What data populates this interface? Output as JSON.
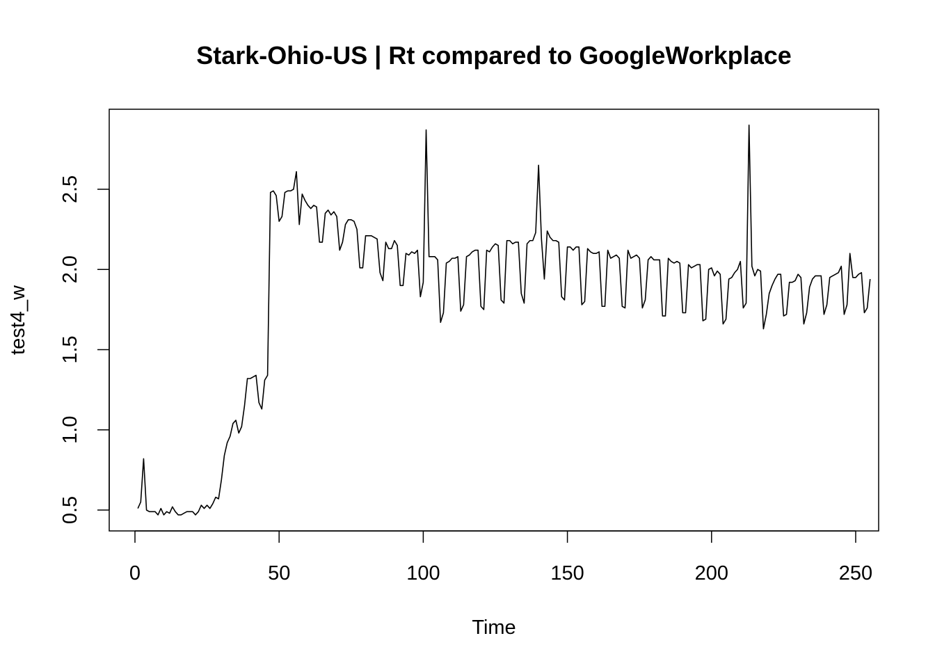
{
  "chart_data": {
    "type": "line",
    "title": "Stark-Ohio-US | Rt compared to GoogleWorkplace",
    "xlabel": "Time",
    "ylabel": "test4_w",
    "xlim": [
      1,
      248
    ],
    "ylim": [
      0.46,
      2.89
    ],
    "x_ticks": [
      0,
      50,
      100,
      150,
      200,
      250
    ],
    "y_ticks": [
      0.5,
      1.0,
      1.5,
      2.0,
      2.5
    ],
    "x_tick_labels": [
      "0",
      "50",
      "100",
      "150",
      "200",
      "250"
    ],
    "y_tick_labels": [
      "0.5",
      "1.0",
      "1.5",
      "2.0",
      "2.5"
    ],
    "grid": false,
    "legend": "none",
    "line_color": "#000000",
    "x_start": 1,
    "series": [
      {
        "values": [
          0.51,
          0.55,
          0.82,
          0.5,
          0.49,
          0.49,
          0.49,
          0.47,
          0.51,
          0.47,
          0.49,
          0.48,
          0.52,
          0.49,
          0.47,
          0.47,
          0.48,
          0.49,
          0.49,
          0.49,
          0.47,
          0.49,
          0.53,
          0.51,
          0.53,
          0.51,
          0.54,
          0.58,
          0.57,
          0.69,
          0.84,
          0.92,
          0.96,
          1.04,
          1.06,
          0.98,
          1.02,
          1.15,
          1.32,
          1.32,
          1.33,
          1.34,
          1.17,
          1.13,
          1.31,
          1.34,
          2.48,
          2.49,
          2.46,
          2.3,
          2.33,
          2.48,
          2.49,
          2.49,
          2.5,
          2.61,
          2.28,
          2.47,
          2.43,
          2.4,
          2.38,
          2.4,
          2.39,
          2.17,
          2.17,
          2.35,
          2.37,
          2.34,
          2.36,
          2.33,
          2.12,
          2.17,
          2.28,
          2.31,
          2.31,
          2.3,
          2.25,
          2.01,
          2.01,
          2.21,
          2.21,
          2.21,
          2.2,
          2.19,
          1.98,
          1.93,
          2.17,
          2.13,
          2.13,
          2.18,
          2.15,
          1.9,
          1.9,
          2.1,
          2.09,
          2.11,
          2.1,
          2.12,
          1.83,
          1.92,
          2.87,
          2.08,
          2.08,
          2.08,
          2.06,
          1.67,
          1.73,
          2.04,
          2.05,
          2.07,
          2.07,
          2.08,
          1.74,
          1.78,
          2.08,
          2.09,
          2.11,
          2.12,
          2.12,
          1.77,
          1.75,
          2.12,
          2.11,
          2.14,
          2.16,
          2.15,
          1.81,
          1.79,
          2.18,
          2.18,
          2.16,
          2.17,
          2.17,
          1.85,
          1.79,
          2.16,
          2.18,
          2.18,
          2.23,
          2.65,
          2.19,
          1.94,
          2.24,
          2.2,
          2.18,
          2.18,
          2.17,
          1.83,
          1.81,
          2.14,
          2.14,
          2.12,
          2.14,
          2.14,
          1.78,
          1.8,
          2.13,
          2.11,
          2.1,
          2.1,
          2.11,
          1.77,
          1.77,
          2.12,
          2.07,
          2.08,
          2.09,
          2.07,
          1.77,
          1.76,
          2.12,
          2.07,
          2.08,
          2.09,
          2.07,
          1.76,
          1.81,
          2.06,
          2.08,
          2.06,
          2.06,
          2.06,
          1.71,
          1.71,
          2.07,
          2.05,
          2.04,
          2.05,
          2.04,
          1.73,
          1.73,
          2.03,
          2.01,
          2.02,
          2.03,
          2.03,
          1.68,
          1.69,
          2.0,
          2.01,
          1.96,
          1.99,
          1.97,
          1.66,
          1.69,
          1.94,
          1.95,
          1.98,
          2.0,
          2.05,
          1.76,
          1.79,
          2.9,
          2.02,
          1.96,
          2.0,
          1.99,
          1.63,
          1.72,
          1.85,
          1.9,
          1.94,
          1.97,
          1.97,
          1.71,
          1.72,
          1.92,
          1.92,
          1.93,
          1.97,
          1.95,
          1.66,
          1.73,
          1.89,
          1.94,
          1.96,
          1.96,
          1.96,
          1.72,
          1.78,
          1.95,
          1.96,
          1.97,
          1.98,
          2.02,
          1.72,
          1.78,
          2.1,
          1.95,
          1.95,
          1.97,
          1.98,
          1.73,
          1.76,
          1.94
        ]
      }
    ]
  }
}
